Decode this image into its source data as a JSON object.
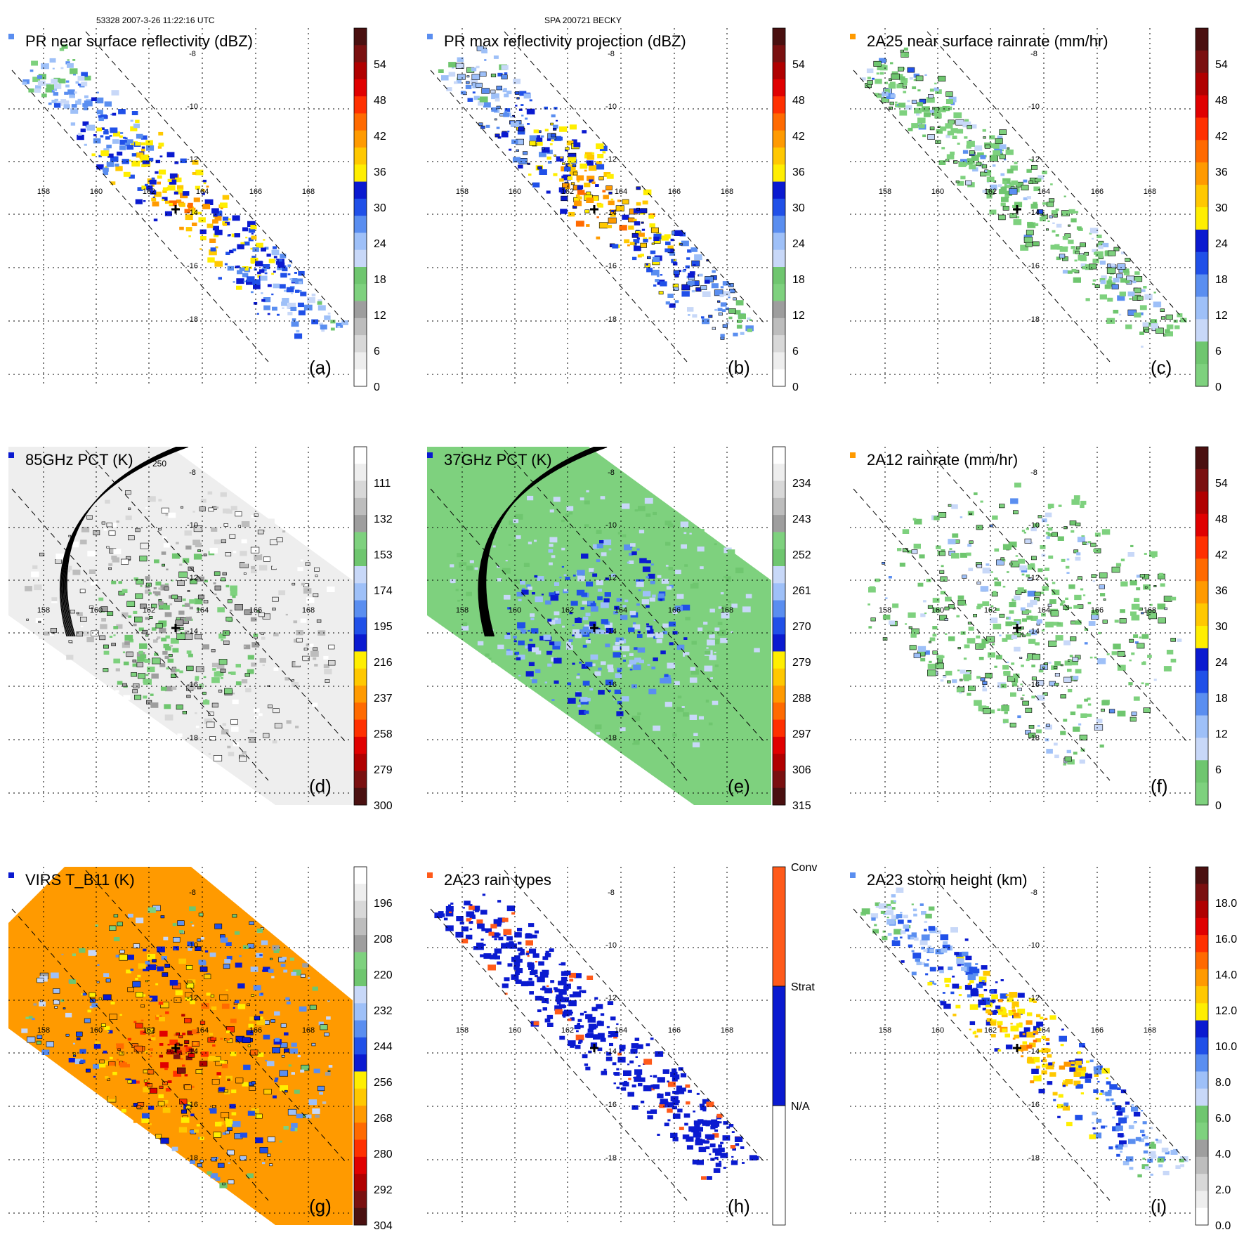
{
  "header": {
    "orbit_info": "53328 2007-3-26 11:22:16 UTC",
    "storm_id": "SPA 200721 BECKY"
  },
  "map": {
    "lon_ticks": [
      "158",
      "160",
      "162",
      "164",
      "166",
      "168"
    ],
    "lat_ticks": [
      "-8",
      "-10",
      "-12",
      "-14",
      "-16",
      "-18"
    ],
    "storm_center_marker": "cross-icon"
  },
  "chart_data": [
    {
      "type": "heatmap",
      "panel": "(a)",
      "title": "PR near surface reflectivity (dBZ)",
      "colorbar_labels": [
        "54",
        "48",
        "42",
        "36",
        "30",
        "24",
        "18",
        "12",
        "6",
        "0"
      ],
      "colorbar_range": [
        0,
        60
      ],
      "swath": "PR",
      "outline": false,
      "colors": [
        "#ffffff",
        "#eeeeee",
        "#d8d8d8",
        "#bdbdbd",
        "#9e9e9e",
        "#7ed17e",
        "#6fc66f",
        "#c8d8f8",
        "#9ec0f8",
        "#5a8ef0",
        "#2050e8",
        "#0a1ad0",
        "#ffee00",
        "#ffc800",
        "#ff9a00",
        "#ff6a00",
        "#ff3000",
        "#e00000",
        "#b00000",
        "#7a1010",
        "#4a1010"
      ]
    },
    {
      "type": "heatmap",
      "panel": "(b)",
      "title": "PR max reflectivity projection (dBZ)",
      "colorbar_labels": [
        "54",
        "48",
        "42",
        "36",
        "30",
        "24",
        "18",
        "12",
        "6",
        "0"
      ],
      "colorbar_range": [
        0,
        60
      ],
      "swath": "PR",
      "outline": true,
      "colors": [
        "#ffffff",
        "#eeeeee",
        "#d8d8d8",
        "#bdbdbd",
        "#9e9e9e",
        "#7ed17e",
        "#6fc66f",
        "#c8d8f8",
        "#9ec0f8",
        "#5a8ef0",
        "#2050e8",
        "#0a1ad0",
        "#ffee00",
        "#ffc800",
        "#ff9a00",
        "#ff6a00",
        "#ff3000",
        "#e00000",
        "#b00000",
        "#7a1010",
        "#4a1010"
      ]
    },
    {
      "type": "heatmap",
      "panel": "(c)",
      "title": "2A25 near surface rainrate (mm/hr)",
      "colorbar_labels": [
        "54",
        "48",
        "42",
        "36",
        "30",
        "24",
        "18",
        "12",
        "6",
        "0"
      ],
      "colorbar_range": [
        0,
        60
      ],
      "swath": "PR",
      "outline": true,
      "colors": [
        "#7ed17e",
        "#6fc66f",
        "#c8d8f8",
        "#9ec0f8",
        "#5a8ef0",
        "#2050e8",
        "#0a1ad0",
        "#ffee00",
        "#ffc800",
        "#ff9a00",
        "#ff6a00",
        "#ff3000",
        "#e00000",
        "#b00000",
        "#7a1010",
        "#4a1010"
      ]
    },
    {
      "type": "heatmap",
      "panel": "(d)",
      "title": "85GHz PCT (K)",
      "colorbar_labels": [
        "111",
        "132",
        "153",
        "174",
        "195",
        "216",
        "237",
        "258",
        "279",
        "300"
      ],
      "colorbar_range": [
        90,
        300
      ],
      "swath": "TMI",
      "outline": true,
      "contour_label": "250",
      "colors": [
        "#4a1010",
        "#7a1010",
        "#b00000",
        "#e00000",
        "#ff3000",
        "#ff6a00",
        "#ff9a00",
        "#ffc800",
        "#ffee00",
        "#0a1ad0",
        "#2050e8",
        "#5a8ef0",
        "#9ec0f8",
        "#c8d8f8",
        "#6fc66f",
        "#7ed17e",
        "#9e9e9e",
        "#bdbdbd",
        "#d8d8d8",
        "#eeeeee",
        "#ffffff"
      ]
    },
    {
      "type": "heatmap",
      "panel": "(e)",
      "title": "37GHz PCT (K)",
      "colorbar_labels": [
        "234",
        "243",
        "252",
        "261",
        "270",
        "279",
        "288",
        "297",
        "306",
        "315"
      ],
      "colorbar_range": [
        225,
        315
      ],
      "swath": "TMI",
      "outline": false,
      "colors": [
        "#4a1010",
        "#7a1010",
        "#b00000",
        "#e00000",
        "#ff3000",
        "#ff6a00",
        "#ff9a00",
        "#ffc800",
        "#ffee00",
        "#0a1ad0",
        "#2050e8",
        "#5a8ef0",
        "#9ec0f8",
        "#c8d8f8",
        "#6fc66f",
        "#7ed17e",
        "#9e9e9e",
        "#bdbdbd",
        "#d8d8d8",
        "#eeeeee",
        "#ffffff"
      ]
    },
    {
      "type": "heatmap",
      "panel": "(f)",
      "title": "2A12 rainrate (mm/hr)",
      "colorbar_labels": [
        "54",
        "48",
        "42",
        "36",
        "30",
        "24",
        "18",
        "12",
        "6",
        "0"
      ],
      "colorbar_range": [
        0,
        60
      ],
      "swath": "TMI",
      "outline": true,
      "colors": [
        "#7ed17e",
        "#6fc66f",
        "#c8d8f8",
        "#9ec0f8",
        "#5a8ef0",
        "#2050e8",
        "#0a1ad0",
        "#ffee00",
        "#ffc800",
        "#ff9a00",
        "#ff6a00",
        "#ff3000",
        "#e00000",
        "#b00000",
        "#7a1010",
        "#4a1010"
      ]
    },
    {
      "type": "heatmap",
      "panel": "(g)",
      "title": "VIRS T_B11 (K)",
      "colorbar_labels": [
        "196",
        "208",
        "220",
        "232",
        "244",
        "256",
        "268",
        "280",
        "292",
        "304"
      ],
      "colorbar_range": [
        184,
        304
      ],
      "swath": "VIRS",
      "outline": true,
      "colors": [
        "#4a1010",
        "#7a1010",
        "#b00000",
        "#e00000",
        "#ff3000",
        "#ff6a00",
        "#ff9a00",
        "#ffc800",
        "#ffee00",
        "#0a1ad0",
        "#2050e8",
        "#5a8ef0",
        "#9ec0f8",
        "#c8d8f8",
        "#6fc66f",
        "#7ed17e",
        "#9e9e9e",
        "#bdbdbd",
        "#d8d8d8",
        "#eeeeee",
        "#ffffff"
      ]
    },
    {
      "type": "heatmap",
      "panel": "(h)",
      "title": "2A23 rain types",
      "colorbar_labels": [
        "Conv",
        "Strat",
        "N/A"
      ],
      "categories": [
        "N/A",
        "Strat",
        "Conv"
      ],
      "swath": "PR",
      "outline": false,
      "colors": [
        "#ffffff",
        "#0a1ad0",
        "#ff5a1a"
      ]
    },
    {
      "type": "heatmap",
      "panel": "(i)",
      "title": "2A23 storm height (km)",
      "colorbar_labels": [
        "18.0",
        "16.0",
        "14.0",
        "12.0",
        "10.0",
        "8.0",
        "6.0",
        "4.0",
        "2.0",
        "0.0"
      ],
      "colorbar_range": [
        0,
        20
      ],
      "swath": "PR",
      "outline": false,
      "colors": [
        "#ffffff",
        "#eeeeee",
        "#d8d8d8",
        "#bdbdbd",
        "#9e9e9e",
        "#7ed17e",
        "#6fc66f",
        "#c8d8f8",
        "#9ec0f8",
        "#5a8ef0",
        "#2050e8",
        "#0a1ad0",
        "#ffee00",
        "#ffc800",
        "#ff9a00",
        "#ff6a00",
        "#ff3000",
        "#e00000",
        "#b00000",
        "#7a1010",
        "#4a1010"
      ]
    }
  ]
}
